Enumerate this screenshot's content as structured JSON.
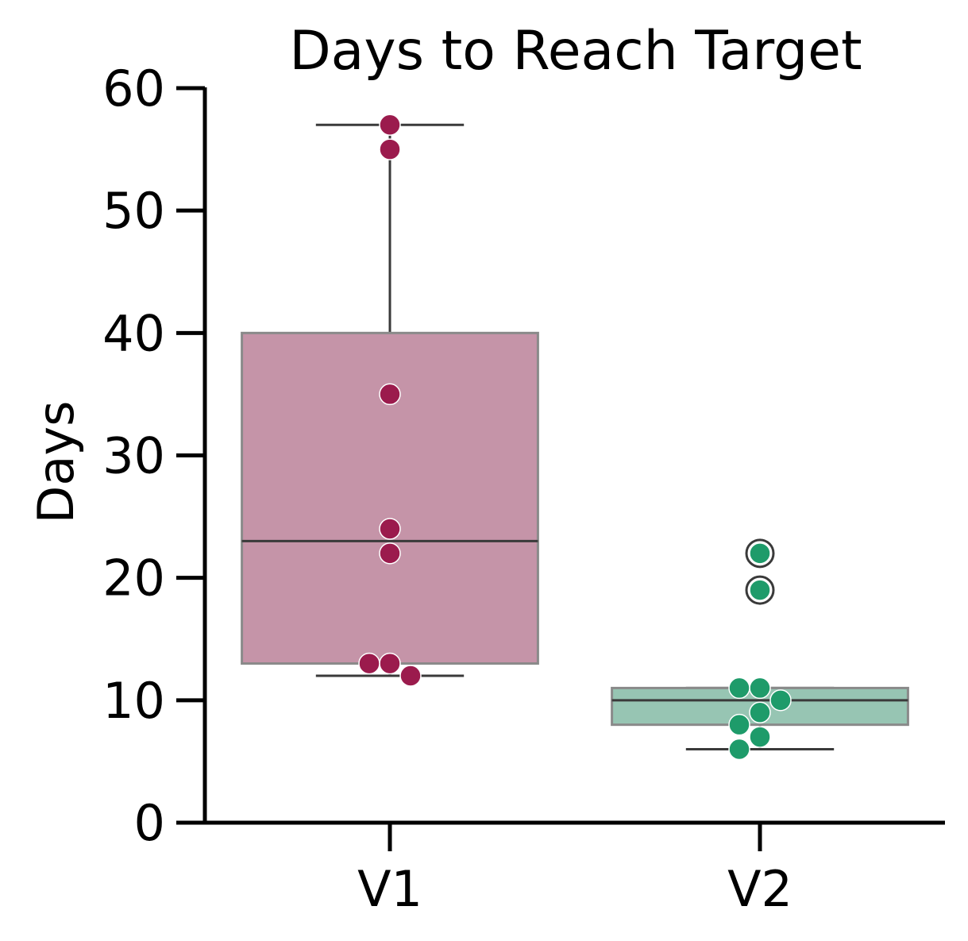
{
  "chart_data": {
    "type": "box",
    "title": "Days to Reach Target",
    "xlabel": "",
    "ylabel": "Days",
    "ylim": [
      0,
      60
    ],
    "yticks": [
      0,
      10,
      20,
      30,
      40,
      50,
      60
    ],
    "categories": [
      "V1",
      "V2"
    ],
    "grid": false,
    "boxes": [
      {
        "category": "V1",
        "whisker_low": 12,
        "q1": 13,
        "median": 23,
        "q3": 40,
        "whisker_high": 57,
        "outliers": [],
        "points": [
          57,
          55,
          35,
          24,
          22,
          13,
          13,
          12
        ],
        "color": "#9B1B4D",
        "box_fill": "#C594A8"
      },
      {
        "category": "V2",
        "whisker_low": 6,
        "q1": 8,
        "median": 10,
        "q3": 11,
        "whisker_high": 11,
        "outliers": [
          22,
          19
        ],
        "points": [
          22,
          19,
          11,
          11,
          10,
          9,
          8,
          7,
          6
        ],
        "color": "#1E9B6A",
        "box_fill": "#97C5B3"
      }
    ]
  }
}
